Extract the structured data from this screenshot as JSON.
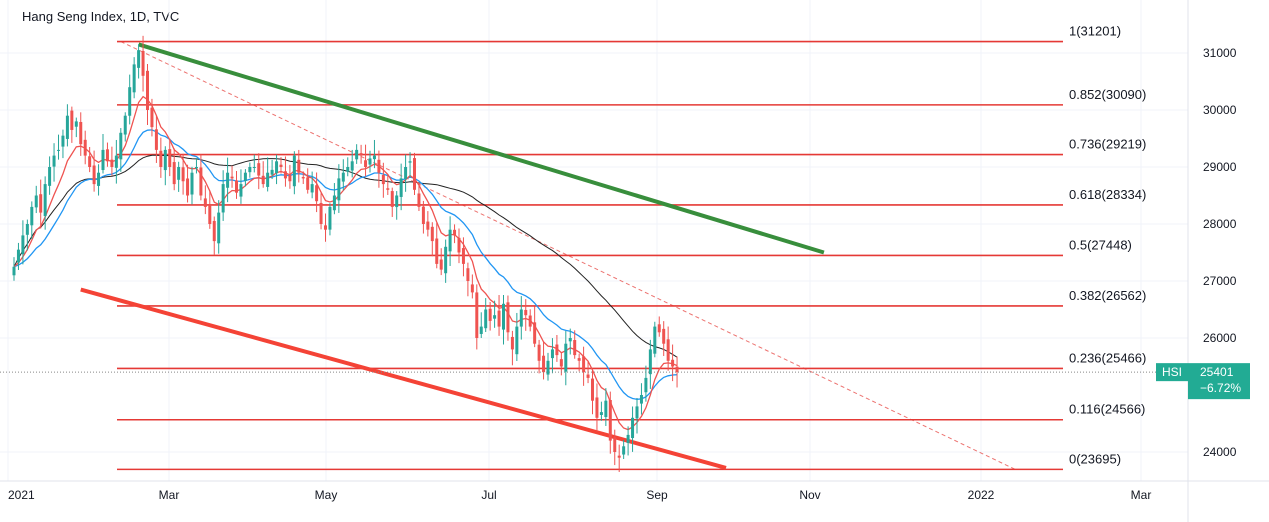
{
  "title": "Hang Seng Index, 1D, TVC",
  "colors": {
    "fib_line": "#e53935",
    "up": "#26a69a",
    "down": "#ef5350",
    "ema_fast": "#ef5350",
    "ema_mid": "#2196f3",
    "sma_slow": "#222222",
    "trend_upper": "#388e3c",
    "trend_lower": "#f44336",
    "badge": "#22ab94"
  },
  "chart_data": {
    "type": "candlestick",
    "symbol": "HSI",
    "last_price": "25401",
    "change_pct": "−6.72%",
    "y_ticks": [
      "31000",
      "30000",
      "29000",
      "28000",
      "27000",
      "26000",
      "24000"
    ],
    "x_ticks": [
      "2021",
      "Mar",
      "May",
      "Jul",
      "Sep",
      "Nov",
      "2022",
      "Mar"
    ],
    "ylim": [
      23500,
      31500
    ],
    "fib_levels": [
      {
        "ratio": 1,
        "value": 31201,
        "label": "1(31201)"
      },
      {
        "ratio": 0.852,
        "value": 30090,
        "label": "0.852(30090)"
      },
      {
        "ratio": 0.736,
        "value": 29219,
        "label": "0.736(29219)"
      },
      {
        "ratio": 0.618,
        "value": 28334,
        "label": "0.618(28334)"
      },
      {
        "ratio": 0.5,
        "value": 27448,
        "label": "0.5(27448)"
      },
      {
        "ratio": 0.382,
        "value": 26562,
        "label": "0.382(26562)"
      },
      {
        "ratio": 0.236,
        "value": 25466,
        "label": "0.236(25466)"
      },
      {
        "ratio": 0.116,
        "value": 24566,
        "label": "0.116(24566)"
      },
      {
        "ratio": 0,
        "value": 23695,
        "label": "0(23695)"
      }
    ],
    "closes": [
      27250,
      27550,
      27800,
      28000,
      28300,
      28500,
      28200,
      28700,
      29000,
      29200,
      29300,
      29550,
      29900,
      29650,
      29800,
      29400,
      29200,
      29000,
      28700,
      28900,
      29300,
      29100,
      29000,
      29200,
      29600,
      29900,
      30400,
      30800,
      31050,
      30600,
      30000,
      29700,
      29300,
      29000,
      29300,
      29000,
      28700,
      29000,
      28750,
      28500,
      28900,
      29000,
      28500,
      28300,
      28000,
      27700,
      28200,
      28700,
      28900,
      28800,
      28550,
      28700,
      28900,
      29000,
      29000,
      28850,
      28700,
      28900,
      28950,
      29100,
      29000,
      28800,
      28750,
      29200,
      28900,
      28800,
      28600,
      28700,
      28400,
      28000,
      27900,
      28300,
      28500,
      28800,
      28900,
      29000,
      29100,
      29300,
      29200,
      29000,
      29150,
      29200,
      28900,
      28700,
      28600,
      28300,
      28500,
      28800,
      29000,
      29100,
      28600,
      28300,
      28000,
      27900,
      27700,
      27300,
      27200,
      27600,
      27900,
      27800,
      27500,
      27300,
      27000,
      26800,
      26000,
      26200,
      26500,
      26300,
      26400,
      26200,
      26600,
      26100,
      25800,
      26200,
      26500,
      26400,
      26200,
      25900,
      25600,
      25400,
      25600,
      25800,
      25700,
      25500,
      25900,
      26000,
      25700,
      25600,
      25400,
      25300,
      24900,
      24600,
      24700,
      24900,
      24200,
      24000,
      23900,
      24100,
      24300,
      24600,
      24800,
      25000,
      25300,
      25800,
      26200,
      26100,
      25900,
      25600,
      25500,
      25401
    ],
    "trendlines": [
      {
        "name": "upper",
        "from": {
          "index": 28,
          "value": 31150
        },
        "to": {
          "index": 182,
          "value": 27500
        }
      },
      {
        "name": "lower",
        "from": {
          "index": 15,
          "value": 26850
        },
        "to": {
          "index": 160,
          "value": 23720
        }
      },
      {
        "name": "fib-diagonal",
        "from": {
          "index": 24,
          "value": 31201
        },
        "to": {
          "index": 225,
          "value": 23695
        }
      }
    ]
  }
}
